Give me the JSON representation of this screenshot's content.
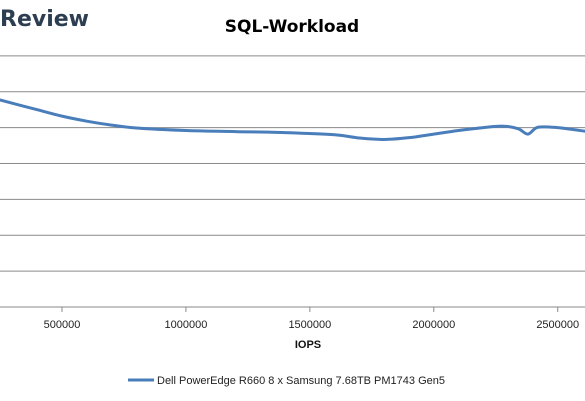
{
  "brand": {
    "text": "Review"
  },
  "chart_data": {
    "type": "line",
    "title": "SQL-Workload",
    "xlabel": "IOPS",
    "ylabel": "",
    "x_ticks": [
      500000,
      1000000,
      1500000,
      2000000,
      2500000
    ],
    "x_tick_labels": [
      "500000",
      "1000000",
      "1500000",
      "2000000",
      "2500000"
    ],
    "xlim": [
      250000,
      2610000
    ],
    "ylim": [
      0,
      8
    ],
    "y_gridlines": [
      1,
      2,
      3,
      4,
      5,
      6,
      7
    ],
    "grid": true,
    "legend_position": "bottom",
    "series": [
      {
        "name": "Dell PowerEdge R660 8 x Samsung 7.68TB PM1743 Gen5",
        "color": "#4a7ebb",
        "x": [
          250000,
          400000,
          500000,
          600000,
          700000,
          800000,
          1000000,
          1200000,
          1400000,
          1600000,
          1700000,
          1800000,
          1900000,
          2000000,
          2100000,
          2200000,
          2280000,
          2340000,
          2380000,
          2420000,
          2500000,
          2610000
        ],
        "y": [
          5.77,
          5.5,
          5.32,
          5.18,
          5.07,
          4.99,
          4.92,
          4.89,
          4.86,
          4.8,
          4.71,
          4.67,
          4.72,
          4.82,
          4.92,
          5.0,
          5.04,
          4.97,
          4.82,
          5.01,
          5.0,
          4.9
        ]
      }
    ]
  }
}
